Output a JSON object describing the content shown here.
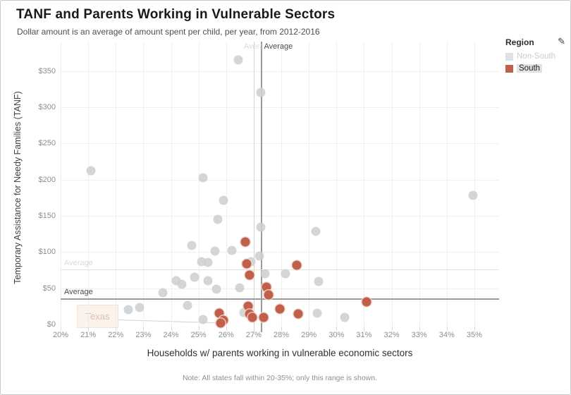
{
  "header": {
    "title": "TANF and Parents Working in Vulnerable Sectors",
    "subtitle": "Dollar amount is an average of amount spent per child, per year, from 2012-2016"
  },
  "legend": {
    "title": "Region",
    "edit_icon": "pen-icon",
    "items": [
      {
        "label": "Non-South",
        "color": "#dfe2e4",
        "state": "dimmed"
      },
      {
        "label": "South",
        "color": "#c0604a",
        "state": "selected"
      }
    ]
  },
  "chart_data": {
    "type": "scatter",
    "title": "TANF and Parents Working in Vulnerable Sectors",
    "xlabel": "Households w/ parents working in vulnerable economic sectors",
    "ylabel": "Temporary Assistance for Needy Families (TANF)",
    "xlim": [
      20,
      35.9
    ],
    "ylim": [
      0,
      389
    ],
    "x_ticks": [
      20,
      21,
      22,
      23,
      24,
      25,
      26,
      27,
      28,
      29,
      30,
      31,
      32,
      33,
      34,
      35
    ],
    "x_tick_format": "percent",
    "y_ticks": [
      0,
      50,
      100,
      150,
      200,
      250,
      300,
      350
    ],
    "y_tick_format": "dollar",
    "grid": true,
    "legend_position": "top-right",
    "series": [
      {
        "name": "Non-South",
        "color": "rgba(204,208,212,0.88)",
        "dimmed": true,
        "points": [
          [
            21.1,
            212
          ],
          [
            25.15,
            203
          ],
          [
            26.45,
            365
          ],
          [
            27.25,
            320
          ],
          [
            25.9,
            171
          ],
          [
            25.7,
            145
          ],
          [
            27.25,
            134
          ],
          [
            29.25,
            129
          ],
          [
            24.75,
            109
          ],
          [
            25.6,
            101
          ],
          [
            26.2,
            102
          ],
          [
            25.1,
            87
          ],
          [
            25.35,
            86
          ],
          [
            26.9,
            87
          ],
          [
            27.2,
            94
          ],
          [
            24.2,
            60
          ],
          [
            24.4,
            56
          ],
          [
            24.85,
            65
          ],
          [
            25.35,
            60
          ],
          [
            25.65,
            49
          ],
          [
            26.5,
            51
          ],
          [
            27.4,
            70
          ],
          [
            28.15,
            70
          ],
          [
            29.35,
            59
          ],
          [
            23.7,
            44
          ],
          [
            24.6,
            26
          ],
          [
            22.45,
            20
          ],
          [
            22.85,
            23
          ],
          [
            25.15,
            7
          ],
          [
            26.65,
            17
          ],
          [
            29.3,
            16
          ],
          [
            30.3,
            10
          ],
          [
            34.95,
            178
          ]
        ]
      },
      {
        "name": "South",
        "color": "#c0604a",
        "dimmed": false,
        "points": [
          [
            26.7,
            114
          ],
          [
            26.75,
            84
          ],
          [
            26.85,
            68
          ],
          [
            27.45,
            52
          ],
          [
            27.55,
            41
          ],
          [
            28.55,
            82
          ],
          [
            31.1,
            31
          ],
          [
            25.75,
            16
          ],
          [
            25.9,
            6
          ],
          [
            25.8,
            2
          ],
          [
            26.8,
            25
          ],
          [
            26.85,
            15
          ],
          [
            26.95,
            10
          ],
          [
            27.35,
            10
          ],
          [
            27.95,
            21
          ],
          [
            28.6,
            15
          ]
        ]
      }
    ],
    "ref_lines": [
      {
        "axis": "x",
        "value": 27.27,
        "label": "Average",
        "style": "solid"
      },
      {
        "axis": "x",
        "value": 27.0,
        "label": "Average",
        "style": "faint"
      },
      {
        "axis": "y",
        "value": 36.5,
        "label": "Average",
        "style": "solid"
      },
      {
        "axis": "y",
        "value": 76,
        "label": "Average",
        "style": "faint"
      }
    ],
    "annotations": [
      {
        "label": "Texas",
        "x": 25.8,
        "y": 2
      }
    ]
  },
  "note": {
    "text": "Note: All states fall within 20-35%; only this range is shown."
  }
}
